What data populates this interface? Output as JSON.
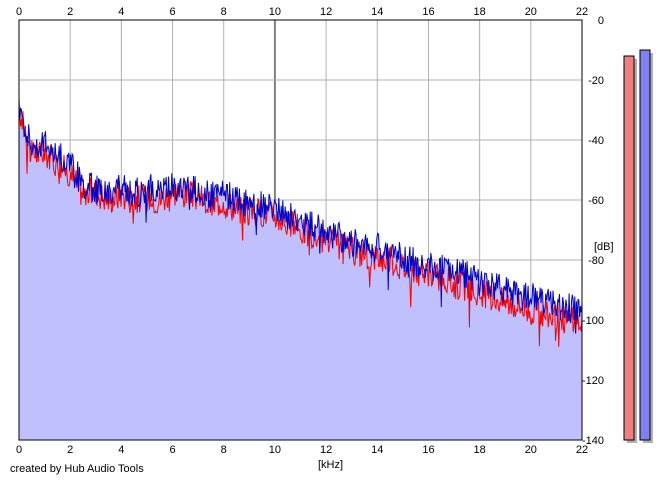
{
  "chart_data": {
    "type": "area",
    "x_top_ticks": [
      "0",
      "2",
      "4",
      "6",
      "8",
      "10",
      "12",
      "14",
      "16",
      "18",
      "20",
      "22"
    ],
    "x_bottom_ticks": [
      "0",
      "2",
      "4",
      "6",
      "8",
      "10",
      "12",
      "14",
      "16",
      "18",
      "20",
      "22"
    ],
    "y_ticks": [
      "0",
      "-20",
      "-40",
      "-60",
      "-80",
      "-100",
      "-120",
      "-140"
    ],
    "xlabel": "[kHz]",
    "ylabel": "[dB]",
    "xlim": [
      0,
      22
    ],
    "ylim": [
      -140,
      0
    ],
    "grid": true,
    "series": [
      {
        "color": "#ff0000",
        "x": [
          0,
          0.5,
          1,
          1.5,
          2,
          2.5,
          3,
          3.5,
          4,
          4.5,
          5,
          5.5,
          6,
          6.5,
          7,
          7.5,
          8,
          8.5,
          9,
          9.5,
          10,
          10.5,
          11,
          11.5,
          12,
          12.5,
          13,
          13.5,
          14,
          14.5,
          15,
          15.5,
          16,
          16.5,
          17,
          17.5,
          18,
          18.5,
          19,
          19.5,
          20,
          20.5,
          21,
          21.5,
          22
        ],
        "y": [
          -30,
          -45,
          -44,
          -48,
          -51,
          -58,
          -57,
          -60,
          -58,
          -60,
          -59,
          -60,
          -57,
          -58,
          -59,
          -62,
          -60,
          -63,
          -64,
          -64,
          -65,
          -68,
          -70,
          -72,
          -74,
          -75,
          -77,
          -78,
          -79,
          -80,
          -82,
          -84,
          -85,
          -86,
          -88,
          -89,
          -91,
          -92,
          -94,
          -95,
          -97,
          -98,
          -99,
          -100,
          -101
        ]
      },
      {
        "color": "#0000c8",
        "x": [
          0,
          0.5,
          1,
          1.5,
          2,
          2.5,
          3,
          3.5,
          4,
          4.5,
          5,
          5.5,
          6,
          6.5,
          7,
          7.5,
          8,
          8.5,
          9,
          9.5,
          10,
          10.5,
          11,
          11.5,
          12,
          12.5,
          13,
          13.5,
          14,
          14.5,
          15,
          15.5,
          16,
          16.5,
          17,
          17.5,
          18,
          18.5,
          19,
          19.5,
          20,
          20.5,
          21,
          21.5,
          22
        ],
        "y": [
          -28,
          -42,
          -41,
          -45,
          -48,
          -55,
          -56,
          -57,
          -56,
          -58,
          -56,
          -57,
          -55,
          -56,
          -57,
          -59,
          -58,
          -60,
          -61,
          -62,
          -63,
          -65,
          -67,
          -69,
          -71,
          -72,
          -74,
          -75,
          -76,
          -77,
          -79,
          -81,
          -82,
          -83,
          -84,
          -85,
          -87,
          -89,
          -90,
          -91,
          -92,
          -94,
          -95,
          -96,
          -97
        ]
      }
    ],
    "fill_color": "#c0c0ff",
    "level_meters": [
      {
        "color": "#f08080",
        "level_db": -12
      },
      {
        "color": "#8080f0",
        "level_db": -10
      }
    ]
  },
  "footer": {
    "credit": "created by Hub Audio Tools"
  }
}
